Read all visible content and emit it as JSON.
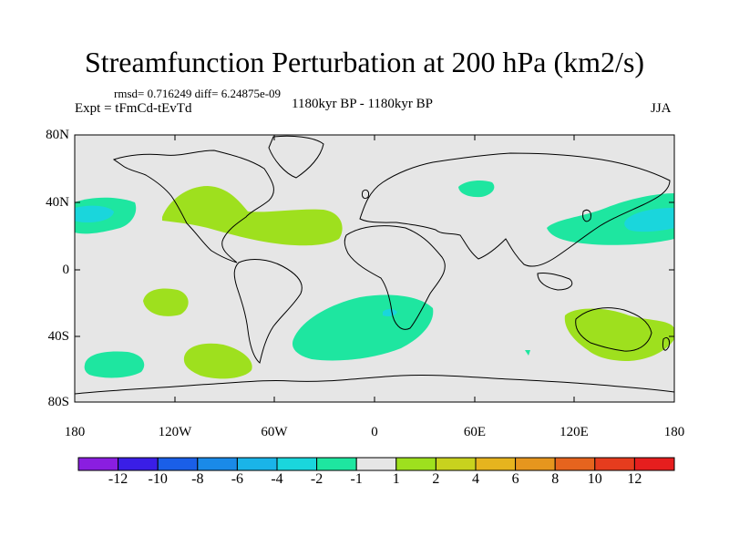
{
  "title": "Streamfunction Perturbation at 200 hPa (km2/s)",
  "stats": "rmsd= 0.716249 diff= 6.24875e-09",
  "experiment": "Expt = tFmCd-tEvTd",
  "period": "1180kyr BP - 1180kyr BP",
  "season": "JJA",
  "lat_labels": [
    "80N",
    "40N",
    "0",
    "40S",
    "80S"
  ],
  "lon_labels": [
    "180",
    "120W",
    "60W",
    "0",
    "60E",
    "120E",
    "180"
  ],
  "colorbar": {
    "labels": [
      "-12",
      "-10",
      "-8",
      "-6",
      "-4",
      "-2",
      "-1",
      "1",
      "2",
      "4",
      "6",
      "8",
      "10",
      "12"
    ],
    "colors": [
      "#8a1ee0",
      "#3a1ee6",
      "#1a5fe8",
      "#1a8ae8",
      "#1ab4e8",
      "#1ad6dc",
      "#1ee6a0",
      "#e6e6e6",
      "#9ee01e",
      "#c8d21e",
      "#e6b41e",
      "#e6961e",
      "#e6641e",
      "#e63c1e",
      "#e61e1e"
    ]
  },
  "colors": {
    "ocean_fill": "#e6e6e6",
    "neg_light": "#1ee6a0",
    "neg_mid": "#1ad6dc",
    "pos_light": "#9ee01e"
  },
  "anomalies": [
    {
      "name": "north-pacific-east-negative",
      "value": "-1",
      "lon": -170,
      "lat": 32
    },
    {
      "name": "north-atlantic-positive",
      "value": "1",
      "lon": -80,
      "lat": 30
    },
    {
      "name": "south-pacific-positive",
      "value": "1",
      "lon": -125,
      "lat": -25
    },
    {
      "name": "south-pacific-negative",
      "value": "-1",
      "lon": -155,
      "lat": -60
    },
    {
      "name": "southern-ocean-positive",
      "value": "1",
      "lon": -95,
      "lat": -60
    },
    {
      "name": "south-atlantic-negative",
      "value": "-1",
      "lon": 10,
      "lat": -40
    },
    {
      "name": "north-asia-negative",
      "value": "-1",
      "lon": 60,
      "lat": 50
    },
    {
      "name": "north-pacific-west-negative",
      "value": "-1",
      "lon": 145,
      "lat": 30
    },
    {
      "name": "australia-positive",
      "value": "1",
      "lon": 140,
      "lat": -40
    }
  ]
}
